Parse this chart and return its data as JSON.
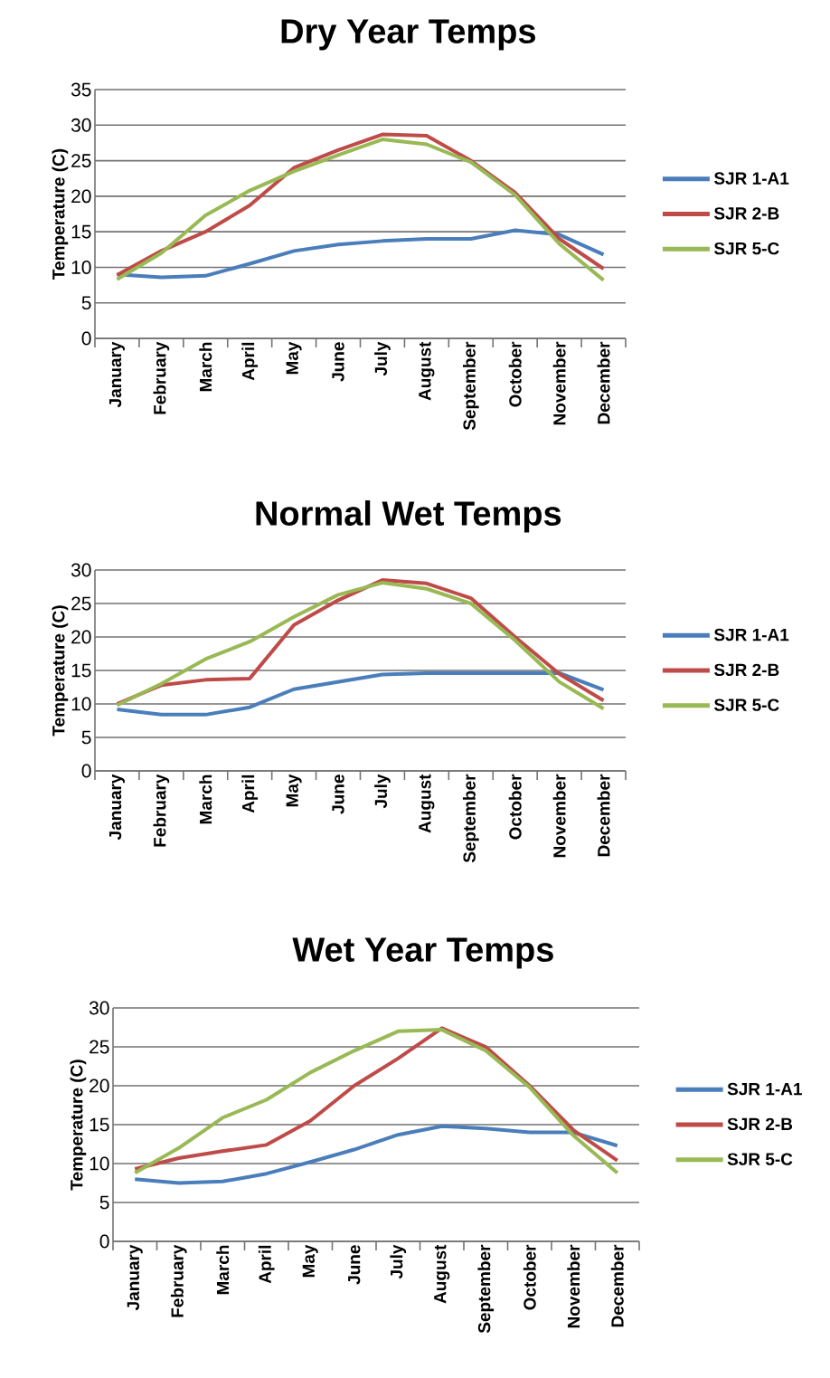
{
  "chart_data": [
    {
      "type": "line",
      "title": "Dry Year Temps",
      "ylabel": "Temperature (C)",
      "categories": [
        "January",
        "February",
        "March",
        "April",
        "May",
        "June",
        "July",
        "August",
        "September",
        "October",
        "November",
        "December"
      ],
      "ylim": [
        0,
        35
      ],
      "yticks": [
        0,
        5,
        10,
        15,
        20,
        25,
        30,
        35
      ],
      "grid": "y",
      "legend": "right",
      "series": [
        {
          "name": "SJR 1-A1",
          "color": "#4a7ebb",
          "values": [
            9.0,
            8.6,
            8.8,
            10.5,
            12.3,
            13.2,
            13.7,
            14.0,
            14.0,
            15.2,
            14.6,
            11.8
          ]
        },
        {
          "name": "SJR 2-B",
          "color": "#be4b48",
          "values": [
            8.9,
            12.3,
            15.0,
            18.7,
            24.0,
            26.5,
            28.7,
            28.5,
            25.0,
            20.5,
            14.0,
            9.8
          ]
        },
        {
          "name": "SJR 5-C",
          "color": "#98b954",
          "values": [
            8.3,
            12.0,
            17.3,
            20.8,
            23.5,
            25.8,
            28.0,
            27.3,
            24.8,
            20.2,
            13.3,
            8.2
          ]
        }
      ]
    },
    {
      "type": "line",
      "title": "Normal Wet Temps",
      "ylabel": "Temperature (C)",
      "categories": [
        "January",
        "February",
        "March",
        "April",
        "May",
        "June",
        "July",
        "August",
        "September",
        "October",
        "November",
        "December"
      ],
      "ylim": [
        0,
        30
      ],
      "yticks": [
        0,
        5,
        10,
        15,
        20,
        25,
        30
      ],
      "grid": "y",
      "legend": "right",
      "series": [
        {
          "name": "SJR 1-A1",
          "color": "#4a7ebb",
          "values": [
            9.2,
            8.4,
            8.4,
            9.5,
            12.2,
            13.3,
            14.4,
            14.6,
            14.6,
            14.6,
            14.6,
            12.1
          ]
        },
        {
          "name": "SJR 2-B",
          "color": "#be4b48",
          "values": [
            10.0,
            12.8,
            13.6,
            13.8,
            21.8,
            25.5,
            28.5,
            28.0,
            25.8,
            20.0,
            14.5,
            10.5
          ]
        },
        {
          "name": "SJR 5-C",
          "color": "#98b954",
          "values": [
            9.8,
            13.0,
            16.7,
            19.3,
            23.0,
            26.3,
            28.1,
            27.2,
            25.0,
            19.5,
            13.3,
            9.3
          ]
        }
      ]
    },
    {
      "type": "line",
      "title": "Wet Year Temps",
      "ylabel": "Temperature (C)",
      "categories": [
        "January",
        "February",
        "March",
        "April",
        "May",
        "June",
        "July",
        "August",
        "September",
        "October",
        "November",
        "December"
      ],
      "ylim": [
        0,
        30
      ],
      "yticks": [
        0,
        5,
        10,
        15,
        20,
        25,
        30
      ],
      "grid": "y",
      "legend": "right",
      "series": [
        {
          "name": "SJR 1-A1",
          "color": "#4a7ebb",
          "values": [
            8.0,
            7.5,
            7.7,
            8.7,
            10.2,
            11.8,
            13.7,
            14.8,
            14.5,
            14.0,
            14.0,
            12.3
          ]
        },
        {
          "name": "SJR 2-B",
          "color": "#be4b48",
          "values": [
            9.3,
            10.7,
            11.6,
            12.4,
            15.5,
            20.0,
            23.5,
            27.4,
            25.0,
            20.0,
            14.3,
            10.4
          ]
        },
        {
          "name": "SJR 5-C",
          "color": "#98b954",
          "values": [
            8.8,
            12.0,
            15.9,
            18.2,
            21.7,
            24.5,
            27.0,
            27.2,
            24.5,
            19.8,
            13.6,
            8.8
          ]
        }
      ]
    }
  ]
}
